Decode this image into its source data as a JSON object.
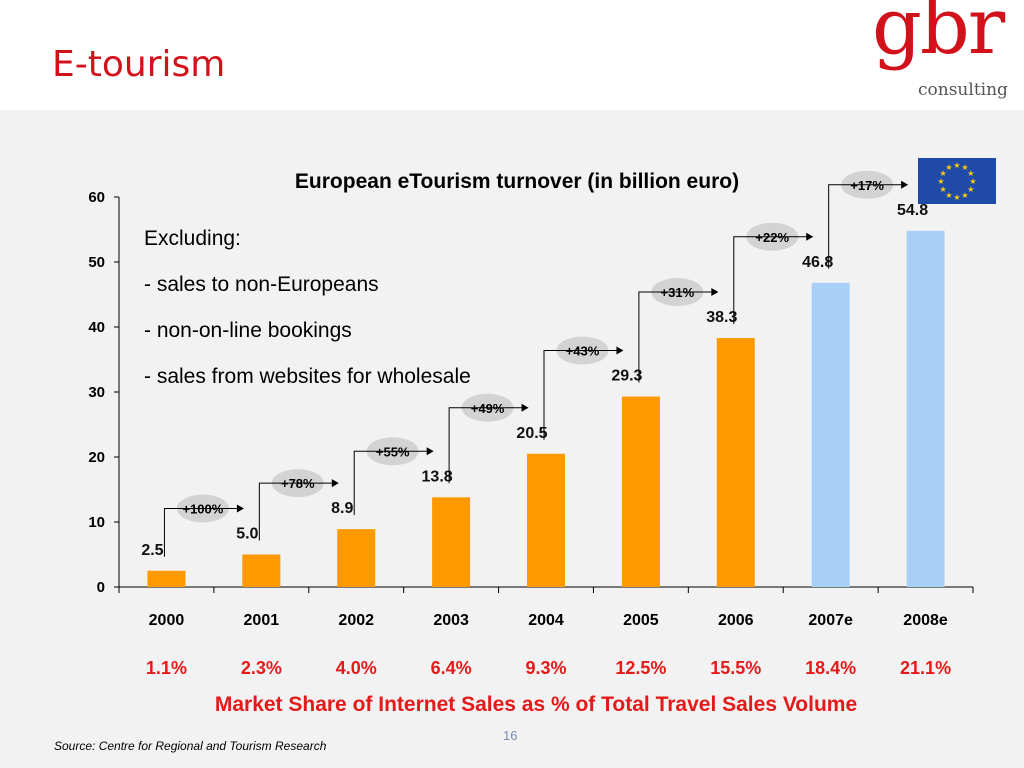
{
  "slide": {
    "title": "E-tourism",
    "page_number": "16"
  },
  "logo": {
    "mark": "gbr",
    "word": "consulting",
    "colors": {
      "mark": "#d2121b",
      "word": "#555555"
    }
  },
  "flag": {
    "name": "eu-flag-icon",
    "background": "#1f4aa8",
    "stars": "#ffcc00"
  },
  "notes": {
    "lines": [
      "Excluding:",
      "- sales to non-Europeans",
      "- non-on-line bookings",
      "- sales from websites for wholesale"
    ]
  },
  "market_share": {
    "title": "Market Share of Internet Sales as % of Total Travel Sales Volume",
    "values": [
      "1.1%",
      "2.3%",
      "4.0%",
      "6.4%",
      "9.3%",
      "12.5%",
      "15.5%",
      "18.4%",
      "21.1%"
    ]
  },
  "source": "Source: Centre for Regional and Tourism Research",
  "chart_data": {
    "type": "bar",
    "title": "European eTourism turnover (in billion euro)",
    "xlabel": "",
    "ylabel": "",
    "ylim": [
      0,
      60
    ],
    "yticks": [
      0,
      10,
      20,
      30,
      40,
      50,
      60
    ],
    "categories": [
      "2000",
      "2001",
      "2002",
      "2003",
      "2004",
      "2005",
      "2006",
      "2007e",
      "2008e"
    ],
    "values": [
      2.5,
      5.0,
      8.9,
      13.8,
      20.5,
      29.3,
      38.3,
      46.8,
      54.8
    ],
    "value_labels": [
      "2.5",
      "5.0",
      "8.9",
      "13.8",
      "20.5",
      "29.3",
      "38.3",
      "46.8",
      "54.8"
    ],
    "growth": [
      "+100%",
      "+78%",
      "+55%",
      "+49%",
      "+43%",
      "+31%",
      "+22%",
      "+17%"
    ],
    "estimated_from_index": 7,
    "colors": {
      "actual": "#ff9900",
      "estimate": "#a8d0f7",
      "growth_bubble": "#d3d3d3",
      "axis": "#000000"
    },
    "grid": false,
    "legend": "none"
  }
}
